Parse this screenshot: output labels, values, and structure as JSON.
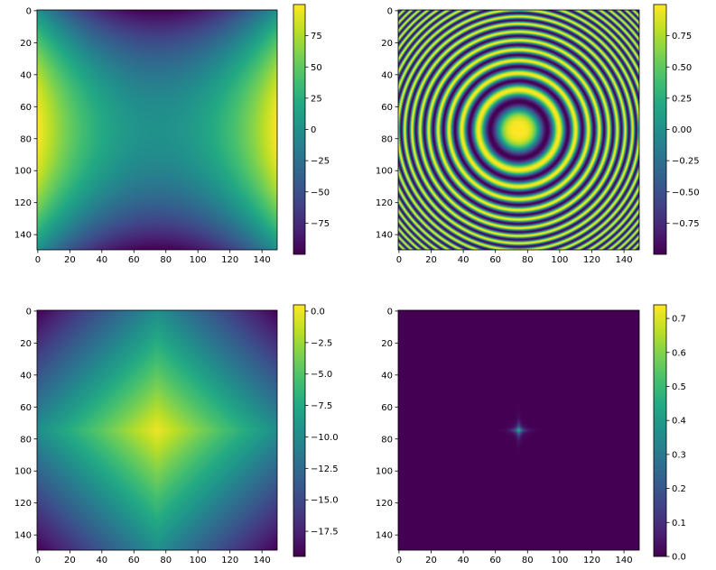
{
  "chart_data": [
    {
      "type": "heatmap",
      "title": "",
      "xlabel": "",
      "ylabel": "",
      "xlim": [
        0,
        150
      ],
      "ylim": [
        150,
        0
      ],
      "xticks": [
        "0",
        "20",
        "40",
        "60",
        "80",
        "100",
        "120",
        "140"
      ],
      "yticks": [
        "0",
        "20",
        "40",
        "60",
        "80",
        "100",
        "120",
        "140"
      ],
      "colormap": "viridis",
      "function": "saddle: value = (x-75)^2/56 - (y-75)^2/56",
      "value_range": [
        -100,
        100
      ],
      "colorbar_ticks": [
        "75",
        "50",
        "25",
        "0",
        "−25",
        "−50",
        "−75"
      ],
      "colorbar_values": [
        75,
        50,
        25,
        0,
        -25,
        -50,
        -75
      ]
    },
    {
      "type": "heatmap",
      "title": "",
      "xlabel": "",
      "ylabel": "",
      "xlim": [
        0,
        150
      ],
      "ylim": [
        150,
        0
      ],
      "xticks": [
        "0",
        "20",
        "40",
        "60",
        "80",
        "100",
        "120",
        "140"
      ],
      "yticks": [
        "0",
        "20",
        "40",
        "60",
        "80",
        "100",
        "120",
        "140"
      ],
      "colormap": "viridis",
      "function": "concentric rings: value = cos(0.01 * r^2), r = distance from (75, 75)",
      "value_range": [
        -1,
        1
      ],
      "colorbar_ticks": [
        "0.75",
        "0.50",
        "0.25",
        "0.00",
        "−0.25",
        "−0.50",
        "−0.75"
      ],
      "colorbar_values": [
        0.75,
        0.5,
        0.25,
        0,
        -0.25,
        -0.5,
        -0.75
      ]
    },
    {
      "type": "heatmap",
      "title": "",
      "xlabel": "",
      "ylabel": "",
      "xlim": [
        0,
        150
      ],
      "ylim": [
        150,
        0
      ],
      "xticks": [
        "0",
        "20",
        "40",
        "60",
        "80",
        "100",
        "120",
        "140"
      ],
      "yticks": [
        "0",
        "20",
        "40",
        "60",
        "80",
        "100",
        "120",
        "140"
      ],
      "colormap": "viridis",
      "function": "pyramid: value = -(|x-75| + |y-75|) / 7.7",
      "value_range": [
        -19.5,
        0.5
      ],
      "colorbar_ticks": [
        "0.0",
        "−2.5",
        "−5.0",
        "−7.5",
        "−10.0",
        "−12.5",
        "−15.0",
        "−17.5"
      ],
      "colorbar_values": [
        0,
        -2.5,
        -5,
        -7.5,
        -10,
        -12.5,
        -15,
        -17.5
      ]
    },
    {
      "type": "heatmap",
      "title": "",
      "xlabel": "",
      "ylabel": "",
      "xlim": [
        0,
        150
      ],
      "ylim": [
        150,
        0
      ],
      "xticks": [
        "0",
        "20",
        "40",
        "60",
        "80",
        "100",
        "120",
        "140"
      ],
      "yticks": [
        "0",
        "20",
        "40",
        "60",
        "80",
        "100",
        "120",
        "140"
      ],
      "colormap": "viridis",
      "function": "sharp peak at center: value = 0.74 * exp(-sqrt(|x-75| * |y-75|) / 1.5 - (|x-75| + |y-75|) / 4)",
      "value_range": [
        0,
        0.74
      ],
      "colorbar_ticks": [
        "0.7",
        "0.6",
        "0.5",
        "0.4",
        "0.3",
        "0.2",
        "0.1",
        "0.0"
      ],
      "colorbar_values": [
        0.7,
        0.6,
        0.5,
        0.4,
        0.3,
        0.2,
        0.1,
        0.0
      ]
    }
  ]
}
